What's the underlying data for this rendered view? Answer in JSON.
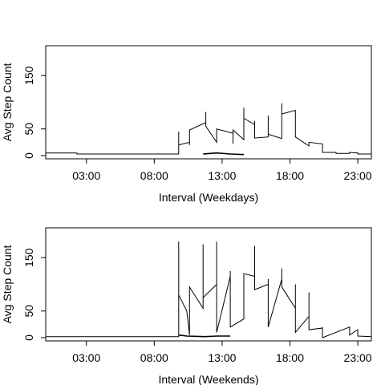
{
  "chart_data": [
    {
      "type": "line",
      "xlabel": "Interval (Weekdays)",
      "ylabel": "Avg Step Count",
      "xlim": [
        0,
        24
      ],
      "ylim": [
        0,
        200
      ],
      "x_ticks": [
        {
          "label": "03:00",
          "value": 3
        },
        {
          "label": "08:00",
          "value": 8
        },
        {
          "label": "13:00",
          "value": 13
        },
        {
          "label": "18:00",
          "value": 18
        },
        {
          "label": "23:00",
          "value": 23
        }
      ],
      "y_ticks": [
        0,
        50,
        150
      ],
      "grid": false,
      "series": [
        {
          "values": [
            {
              "x": 0.0,
              "y": 5
            },
            {
              "x": 2.3,
              "y": 5
            },
            {
              "x": 2.3,
              "y": 3
            },
            {
              "x": 9.8,
              "y": 3
            },
            {
              "x": 9.8,
              "y": 45
            },
            {
              "x": 9.8,
              "y": 20
            },
            {
              "x": 10.6,
              "y": 25
            },
            {
              "x": 10.6,
              "y": 20
            },
            {
              "x": 10.6,
              "y": 48
            },
            {
              "x": 11.8,
              "y": 62
            },
            {
              "x": 11.8,
              "y": 82
            },
            {
              "x": 11.8,
              "y": 55
            },
            {
              "x": 12.6,
              "y": 25
            },
            {
              "x": 12.6,
              "y": 50
            },
            {
              "x": 13.8,
              "y": 42
            },
            {
              "x": 13.8,
              "y": 22
            },
            {
              "x": 13.8,
              "y": 48
            },
            {
              "x": 14.6,
              "y": 30
            },
            {
              "x": 14.6,
              "y": 90
            },
            {
              "x": 14.6,
              "y": 70
            },
            {
              "x": 15.4,
              "y": 58
            },
            {
              "x": 15.4,
              "y": 65
            },
            {
              "x": 15.4,
              "y": 33
            },
            {
              "x": 16.4,
              "y": 35
            },
            {
              "x": 16.4,
              "y": 75
            },
            {
              "x": 16.4,
              "y": 40
            },
            {
              "x": 17.4,
              "y": 32
            },
            {
              "x": 17.4,
              "y": 98
            },
            {
              "x": 17.4,
              "y": 78
            },
            {
              "x": 18.4,
              "y": 85
            },
            {
              "x": 18.4,
              "y": 35
            },
            {
              "x": 19.4,
              "y": 18
            },
            {
              "x": 19.4,
              "y": 25
            },
            {
              "x": 20.4,
              "y": 22
            },
            {
              "x": 20.4,
              "y": 20
            },
            {
              "x": 20.4,
              "y": 6
            },
            {
              "x": 21.4,
              "y": 6
            },
            {
              "x": 21.4,
              "y": 4
            },
            {
              "x": 22.4,
              "y": 4
            },
            {
              "x": 22.4,
              "y": 6
            },
            {
              "x": 23.0,
              "y": 5
            },
            {
              "x": 23.0,
              "y": 3
            },
            {
              "x": 24.0,
              "y": 3
            }
          ]
        },
        {
          "values": [
            {
              "x": 11.6,
              "y": 3
            },
            {
              "x": 12.6,
              "y": 5
            },
            {
              "x": 13.6,
              "y": 3
            },
            {
              "x": 14.6,
              "y": 2
            }
          ]
        }
      ]
    },
    {
      "type": "line",
      "xlabel": "Interval (Weekends)",
      "ylabel": "Avg Step Count",
      "xlim": [
        0,
        24
      ],
      "ylim": [
        0,
        200
      ],
      "x_ticks": [
        {
          "label": "03:00",
          "value": 3
        },
        {
          "label": "08:00",
          "value": 8
        },
        {
          "label": "13:00",
          "value": 13
        },
        {
          "label": "18:00",
          "value": 18
        },
        {
          "label": "23:00",
          "value": 23
        }
      ],
      "y_ticks": [
        0,
        50,
        150
      ],
      "grid": false,
      "series": [
        {
          "values": [
            {
              "x": 0.0,
              "y": 2
            },
            {
              "x": 9.8,
              "y": 2
            },
            {
              "x": 9.8,
              "y": 180
            },
            {
              "x": 9.8,
              "y": 80
            },
            {
              "x": 10.4,
              "y": 50
            },
            {
              "x": 10.6,
              "y": 5
            },
            {
              "x": 10.6,
              "y": 95
            },
            {
              "x": 11.6,
              "y": 55
            },
            {
              "x": 11.6,
              "y": 175
            },
            {
              "x": 11.6,
              "y": 75
            },
            {
              "x": 12.6,
              "y": 100
            },
            {
              "x": 12.6,
              "y": 180
            },
            {
              "x": 12.6,
              "y": 10
            },
            {
              "x": 13.6,
              "y": 115
            },
            {
              "x": 13.6,
              "y": 125
            },
            {
              "x": 13.6,
              "y": 20
            },
            {
              "x": 14.6,
              "y": 35
            },
            {
              "x": 14.6,
              "y": 120
            },
            {
              "x": 15.4,
              "y": 115
            },
            {
              "x": 15.4,
              "y": 172
            },
            {
              "x": 15.4,
              "y": 90
            },
            {
              "x": 16.4,
              "y": 100
            },
            {
              "x": 16.4,
              "y": 110
            },
            {
              "x": 16.4,
              "y": 20
            },
            {
              "x": 17.4,
              "y": 110
            },
            {
              "x": 17.4,
              "y": 130
            },
            {
              "x": 17.4,
              "y": 95
            },
            {
              "x": 18.4,
              "y": 55
            },
            {
              "x": 18.4,
              "y": 100
            },
            {
              "x": 18.4,
              "y": 10
            },
            {
              "x": 19.4,
              "y": 40
            },
            {
              "x": 19.4,
              "y": 85
            },
            {
              "x": 19.4,
              "y": 15
            },
            {
              "x": 20.4,
              "y": 18
            },
            {
              "x": 20.4,
              "y": 20
            },
            {
              "x": 20.4,
              "y": 0
            },
            {
              "x": 22.4,
              "y": 20
            },
            {
              "x": 22.4,
              "y": 5
            },
            {
              "x": 23.0,
              "y": 15
            },
            {
              "x": 23.0,
              "y": 3
            },
            {
              "x": 24.0,
              "y": 2
            }
          ]
        },
        {
          "values": [
            {
              "x": 9.8,
              "y": 5
            },
            {
              "x": 10.4,
              "y": 3
            },
            {
              "x": 11.8,
              "y": 2
            },
            {
              "x": 12.6,
              "y": 3
            },
            {
              "x": 13.6,
              "y": 3
            }
          ]
        }
      ]
    }
  ]
}
